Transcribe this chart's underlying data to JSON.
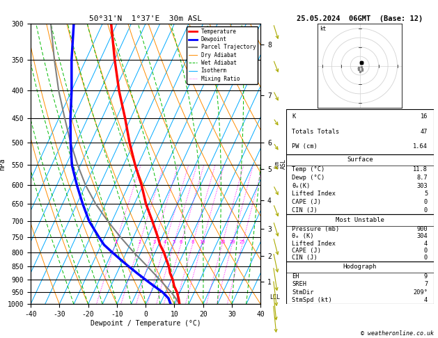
{
  "title_left": "50°31'N  1°37'E  30m ASL",
  "title_right": "25.05.2024  06GMT  (Base: 12)",
  "xlabel": "Dewpoint / Temperature (°C)",
  "ylabel_left": "hPa",
  "pressure_levels": [
    300,
    350,
    400,
    450,
    500,
    550,
    600,
    650,
    700,
    750,
    800,
    850,
    900,
    950,
    1000
  ],
  "p_min": 300,
  "p_max": 1000,
  "temp_min": -40,
  "temp_max": 40,
  "temp_data": {
    "pressure": [
      1000,
      975,
      950,
      925,
      900,
      875,
      850,
      825,
      800,
      775,
      750,
      700,
      650,
      600,
      550,
      500,
      450,
      400,
      350,
      300
    ],
    "temp": [
      11.8,
      10.5,
      9.0,
      7.0,
      5.5,
      3.5,
      2.0,
      0.0,
      -2.0,
      -4.5,
      -6.5,
      -11.0,
      -16.0,
      -20.5,
      -26.0,
      -31.5,
      -37.0,
      -43.5,
      -50.0,
      -57.0
    ],
    "dewp": [
      8.7,
      7.0,
      4.0,
      0.0,
      -4.0,
      -8.0,
      -12.0,
      -16.0,
      -20.0,
      -24.0,
      -27.0,
      -33.0,
      -38.0,
      -43.0,
      -48.0,
      -52.0,
      -56.0,
      -60.0,
      -65.0,
      -70.0
    ]
  },
  "parcel_data": {
    "pressure": [
      1000,
      975,
      950,
      925,
      900,
      850,
      800,
      750,
      700,
      650,
      600,
      550,
      500,
      450,
      400,
      350,
      300
    ],
    "temp": [
      11.8,
      9.5,
      7.0,
      4.0,
      1.0,
      -5.5,
      -12.5,
      -19.5,
      -26.5,
      -33.5,
      -40.0,
      -46.0,
      -52.0,
      -58.0,
      -64.5,
      -71.0,
      -78.0
    ]
  },
  "lcl_pressure": 970,
  "mixing_ratios": [
    1,
    2,
    3,
    4,
    5,
    6,
    8,
    10,
    16,
    20,
    25
  ],
  "km_ticks": {
    "pressures": [
      908,
      812,
      724,
      640,
      560,
      500,
      408,
      328
    ],
    "labels": [
      "1",
      "2",
      "3",
      "4",
      "5",
      "6",
      "7",
      "8"
    ]
  },
  "colors": {
    "temperature": "#ff0000",
    "dewpoint": "#0000ff",
    "parcel": "#808080",
    "dry_adiabat": "#ff8c00",
    "wet_adiabat": "#00bb00",
    "isotherm": "#00aaff",
    "mixing_ratio": "#ff00ff",
    "background": "#ffffff"
  },
  "surface_data": {
    "K": 16,
    "TotTot": 47,
    "PW_cm": 1.64,
    "Temp_C": 11.8,
    "Dewp_C": 8.7,
    "theta_e_K": 303,
    "LiftedIndex": 5,
    "CAPE_J": 0,
    "CIN_J": 0
  },
  "mu_data": {
    "Pressure_mb": 900,
    "theta_e_K": 304,
    "LiftedIndex": 4,
    "CAPE_J": 0,
    "CIN_J": 0
  },
  "hodograph_data": {
    "EH": 9,
    "SREH": 7,
    "StmDir": 209,
    "StmSpd_kt": 4
  },
  "wind_arrows": {
    "pressure": [
      300,
      350,
      400,
      450,
      500,
      550,
      600,
      650,
      700,
      750,
      800,
      850,
      900,
      950,
      1000
    ],
    "direction": [
      240,
      245,
      250,
      255,
      255,
      260,
      250,
      245,
      240,
      235,
      230,
      220,
      215,
      210,
      209
    ],
    "speed": [
      12,
      11,
      10,
      9,
      8,
      7,
      7,
      6,
      6,
      5,
      5,
      5,
      4,
      4,
      4
    ]
  }
}
